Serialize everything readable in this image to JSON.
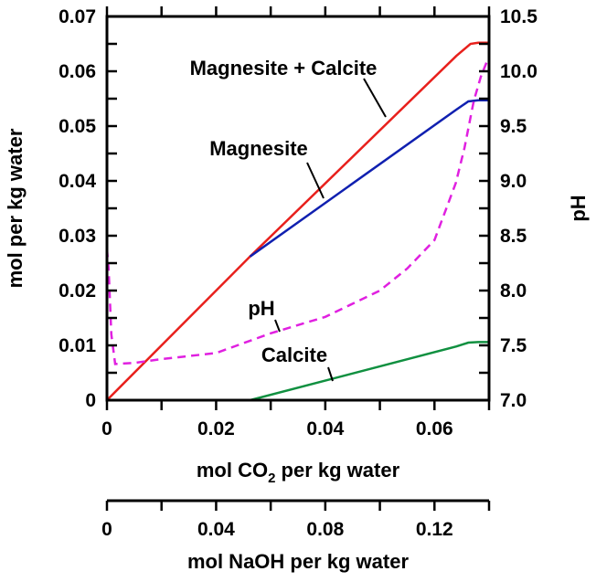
{
  "chart_data": {
    "type": "line",
    "xlabel": "mol CO2 per kg water",
    "xlabel_main": "mol CO",
    "xlabel_sub": "2",
    "xlabel_rest": " per kg water",
    "ylabel": "mol per kg water",
    "y2label": "pH",
    "x2label": "mol NaOH per kg water",
    "xlim": [
      0,
      0.07
    ],
    "ylim": [
      0,
      0.07
    ],
    "y2lim": [
      7.0,
      10.5
    ],
    "x2lim": [
      0,
      0.14
    ],
    "xticks": [
      "0",
      "0.02",
      "0.04",
      "0.06"
    ],
    "xtick_values": [
      0,
      0.02,
      0.04,
      0.06
    ],
    "yticks": [
      "0",
      "0.01",
      "0.02",
      "0.03",
      "0.04",
      "0.05",
      "0.06",
      "0.07"
    ],
    "ytick_values": [
      0,
      0.01,
      0.02,
      0.03,
      0.04,
      0.05,
      0.06,
      0.07
    ],
    "y2ticks": [
      "7.0",
      "7.5",
      "8.0",
      "8.5",
      "9.0",
      "9.5",
      "10.0",
      "10.5"
    ],
    "y2tick_values": [
      7.0,
      7.5,
      8.0,
      8.5,
      9.0,
      9.5,
      10.0,
      10.5
    ],
    "x2ticks": [
      "0",
      "0.04",
      "0.08",
      "0.12"
    ],
    "x2tick_values": [
      0,
      0.04,
      0.08,
      0.12
    ],
    "grid": false,
    "series": [
      {
        "name": "Magnesite + Calcite",
        "axis": "left",
        "color": "#e8201c",
        "dash": false,
        "x": [
          0,
          0.0262,
          0.064,
          0.0666,
          0.068,
          0.07
        ],
        "y": [
          0,
          0.0262,
          0.0628,
          0.065,
          0.0652,
          0.0652
        ]
      },
      {
        "name": "Magnesite",
        "axis": "left",
        "color": "#1020b0",
        "dash": false,
        "x": [
          0.0262,
          0.064,
          0.0662,
          0.068,
          0.07
        ],
        "y": [
          0.0262,
          0.053,
          0.0545,
          0.0547,
          0.0547
        ]
      },
      {
        "name": "Calcite",
        "axis": "left",
        "color": "#109040",
        "dash": false,
        "x": [
          0,
          0.0262,
          0.064,
          0.0662,
          0.068,
          0.07
        ],
        "y": [
          0,
          0,
          0.0098,
          0.0105,
          0.0106,
          0.0106
        ]
      },
      {
        "name": "pH",
        "axis": "right",
        "color": "#e020e0",
        "dash": true,
        "x": [
          0,
          0.0003,
          0.0008,
          0.0015,
          0.005,
          0.01,
          0.02,
          0.03,
          0.04,
          0.05,
          0.055,
          0.06,
          0.0639,
          0.0655,
          0.0672,
          0.0685,
          0.0697
        ],
        "y": [
          8.38,
          8.2,
          7.6,
          7.33,
          7.34,
          7.375,
          7.43,
          7.61,
          7.76,
          8.0,
          8.2,
          8.46,
          8.98,
          9.3,
          9.73,
          9.95,
          10.1
        ]
      }
    ],
    "annotations": [
      "Magnesite + Calcite",
      "Magnesite",
      "pH",
      "Calcite"
    ]
  }
}
